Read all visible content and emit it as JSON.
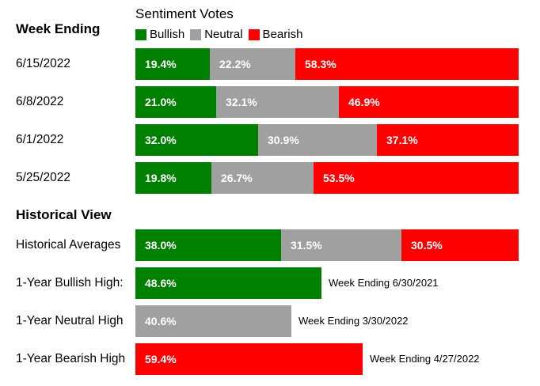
{
  "colors": {
    "bullish": "#008000",
    "neutral": "#a0a0a0",
    "bearish": "#ff0000"
  },
  "header": {
    "title": "Sentiment Votes",
    "week_heading": "Week Ending",
    "historical_heading": "Historical View"
  },
  "legend": [
    {
      "label": "Bullish",
      "color": "#008000"
    },
    {
      "label": "Neutral",
      "color": "#a0a0a0"
    },
    {
      "label": "Bearish",
      "color": "#ff0000"
    }
  ],
  "chart_data": {
    "type": "bar",
    "title": "Sentiment Votes",
    "stacked": true,
    "legend_placement": "top",
    "weekly": {
      "categories": [
        "6/15/2022",
        "6/8/2022",
        "6/1/2022",
        "5/25/2022"
      ],
      "series": [
        {
          "name": "Bullish",
          "values": [
            19.4,
            21.0,
            32.0,
            19.8
          ],
          "labels": [
            "19.4%",
            "21.0%",
            "32.0%",
            "19.8%"
          ]
        },
        {
          "name": "Neutral",
          "values": [
            22.2,
            32.1,
            30.9,
            26.7
          ],
          "labels": [
            "22.2%",
            "32.1%",
            "30.9%",
            "26.7%"
          ]
        },
        {
          "name": "Bearish",
          "values": [
            58.3,
            46.9,
            37.1,
            53.5
          ],
          "labels": [
            "58.3%",
            "46.9%",
            "37.1%",
            "53.5%"
          ]
        }
      ]
    },
    "historical": [
      {
        "label": "Historical Averages",
        "segments": [
          {
            "name": "Bullish",
            "value": 38.0,
            "label": "38.0%"
          },
          {
            "name": "Neutral",
            "value": 31.5,
            "label": "31.5%"
          },
          {
            "name": "Bearish",
            "value": 30.5,
            "label": "30.5%"
          }
        ]
      },
      {
        "label": "1-Year Bullish High:",
        "segments": [
          {
            "name": "Bullish",
            "value": 48.6,
            "label": "48.6%"
          }
        ],
        "note": "Week Ending 6/30/2021"
      },
      {
        "label": "1-Year Neutral High",
        "segments": [
          {
            "name": "Neutral",
            "value": 40.6,
            "label": "40.6%"
          }
        ],
        "note": "Week Ending 3/30/2022"
      },
      {
        "label": "1-Year Bearish High",
        "segments": [
          {
            "name": "Bearish",
            "value": 59.4,
            "label": "59.4%"
          }
        ],
        "note": "Week Ending 4/27/2022"
      }
    ]
  }
}
